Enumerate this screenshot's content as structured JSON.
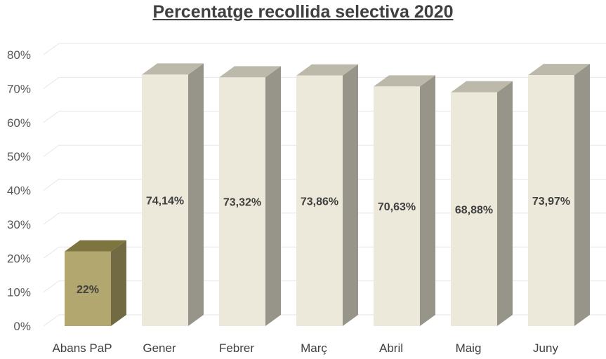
{
  "chart_data": {
    "type": "bar",
    "title": "Percentatge recollida selectiva 2020",
    "xlabel": "",
    "ylabel": "",
    "categories": [
      "Abans PaP",
      "Gener",
      "Febrer",
      "Març",
      "Abril",
      "Maig",
      "Juny"
    ],
    "values": [
      22,
      74.14,
      73.32,
      73.86,
      70.63,
      68.88,
      73.97
    ],
    "data_labels": [
      "22%",
      "74,14%",
      "73,32%",
      "73,86%",
      "70,63%",
      "68,88%",
      "73,97%"
    ],
    "ylim": [
      0,
      80
    ],
    "yticks": [
      "0%",
      "10%",
      "20%",
      "30%",
      "40%",
      "50%",
      "60%",
      "70%",
      "80%"
    ],
    "grid": true,
    "three_d": true,
    "colors": {
      "highlight_front": "#b2a76e",
      "highlight_top": "#7d743f",
      "highlight_side": "#716a43",
      "bar_front": "#ece9da",
      "bar_top": "#bcb9ab",
      "bar_side": "#979589",
      "grid": "#e6e6e6"
    }
  }
}
